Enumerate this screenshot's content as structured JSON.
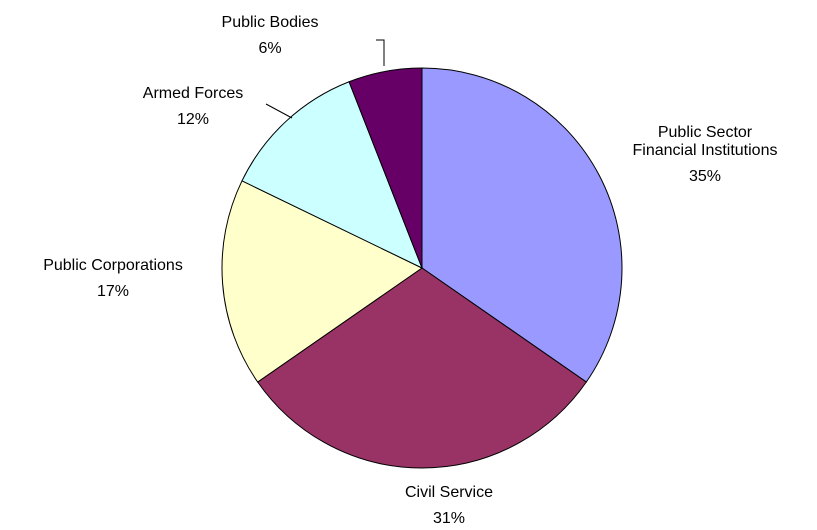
{
  "chart_data": {
    "type": "pie",
    "categories": [
      "Public Sector Financial Institutions",
      "Civil Service",
      "Public Corporations",
      "Armed Forces",
      "Public Bodies"
    ],
    "values": [
      35,
      31,
      17,
      12,
      6
    ],
    "value_labels": [
      "35%",
      "31%",
      "17%",
      "12%",
      "6%"
    ],
    "colors": [
      "#9999ff",
      "#993366",
      "#ffffcc",
      "#ccffff",
      "#660066"
    ]
  }
}
